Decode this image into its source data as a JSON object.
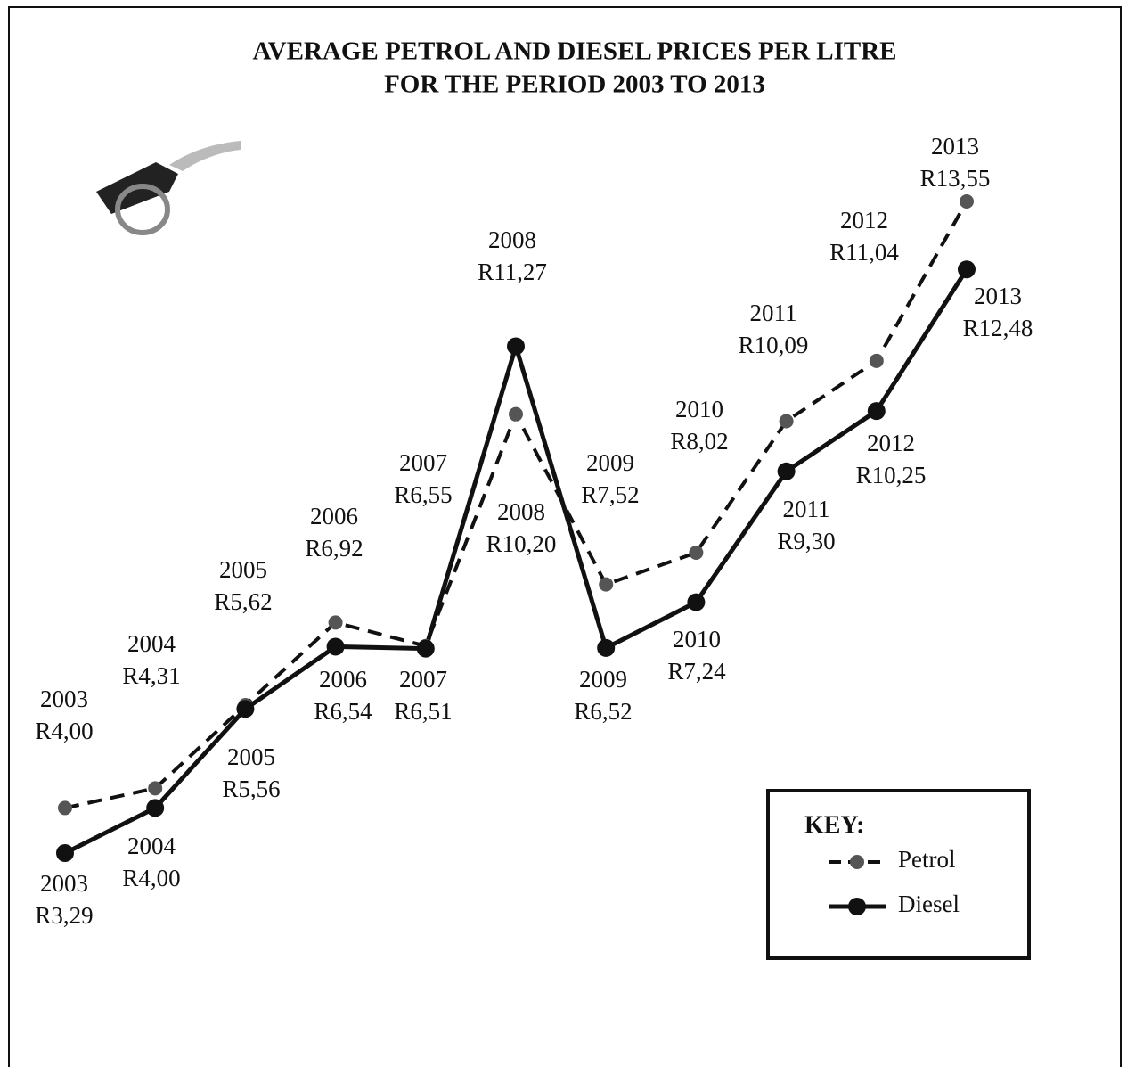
{
  "chart_data": {
    "type": "line",
    "title": [
      "AVERAGE PETROL AND DIESEL PRICES PER LITRE",
      "FOR THE PERIOD 2003 TO 2013"
    ],
    "categories": [
      "2003",
      "2004",
      "2005",
      "2006",
      "2007",
      "2008",
      "2009",
      "2010",
      "2011",
      "2012",
      "2013"
    ],
    "legend_title": "KEY:",
    "legend": "lower right",
    "series": [
      {
        "name": "Petrol",
        "color": "#555555",
        "line_style": "dashed",
        "values": [
          4.0,
          4.31,
          5.62,
          6.92,
          6.55,
          10.2,
          7.52,
          8.02,
          10.09,
          11.04,
          13.55
        ],
        "value_labels": [
          "R4,00",
          "R4,31",
          "R5,62",
          "R6,92",
          "R6,55",
          "R10,20",
          "R7,52",
          "R8,02",
          "R10,09",
          "R11,04",
          "R13,55"
        ]
      },
      {
        "name": "Diesel",
        "color": "#111111",
        "line_style": "solid",
        "values": [
          3.29,
          4.0,
          5.56,
          6.54,
          6.51,
          11.27,
          6.52,
          7.24,
          9.3,
          10.25,
          12.48
        ],
        "value_labels": [
          "R3,29",
          "R4,00",
          "R5,56",
          "R6,54",
          "R6,51",
          "R11,27",
          "R6,52",
          "R7,24",
          "R9,30",
          "R10,25",
          "R12,48"
        ]
      }
    ]
  }
}
